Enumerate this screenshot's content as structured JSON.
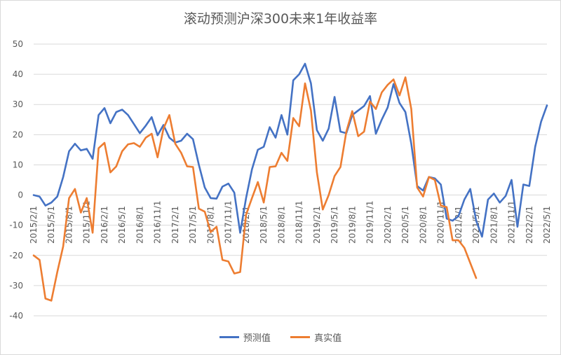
{
  "chart_data": {
    "type": "line",
    "title": "滚动预测沪深300未来1年收益率",
    "ylim": [
      -40,
      50
    ],
    "yticks": [
      50,
      40,
      30,
      20,
      10,
      0,
      -10,
      -20,
      -30,
      -40
    ],
    "xtick_labels": [
      "2015/2/1",
      "2015/5/1",
      "2015/8/1",
      "2015/11/1",
      "2016/2/1",
      "2016/5/1",
      "2016/8/1",
      "2016/11/1",
      "2017/2/1",
      "2017/5/1",
      "2017/8/1",
      "2017/11/1",
      "2018/2/1",
      "2018/5/1",
      "2018/8/1",
      "2018/11/1",
      "2019/2/1",
      "2019/5/1",
      "2019/8/1",
      "2019/11/1",
      "2020/2/1",
      "2020/5/1",
      "2020/8/1",
      "2020/11/1",
      "2021/2/1",
      "2021/5/1",
      "2021/8/1",
      "2021/11/1",
      "2022/2/1",
      "2022/5/1"
    ],
    "grid": true,
    "legend_position": "bottom",
    "series": [
      {
        "name": "预测值",
        "color": "#4472C4",
        "values": [
          0,
          -0.5,
          -3.5,
          -2.5,
          -0.5,
          6,
          14.5,
          17,
          14.8,
          15.3,
          12,
          26.5,
          28.8,
          23.8,
          27.5,
          28.3,
          26.5,
          23.5,
          20.5,
          23,
          25.8,
          19.8,
          23.2,
          19,
          17.4,
          18,
          20.3,
          18.5,
          10,
          2.5,
          -1,
          -1.2,
          2.8,
          3.8,
          0.8,
          -12.5,
          -1,
          8.5,
          15,
          16,
          22.5,
          19,
          26.5,
          20,
          38,
          40,
          43.5,
          37,
          21.5,
          18,
          22,
          32.5,
          21,
          20.5,
          26.5,
          28,
          29.5,
          32.8,
          20.3,
          25,
          29,
          36.8,
          30.5,
          27.5,
          17,
          3,
          1.5,
          6,
          5.5,
          3.5,
          -7.8,
          -8.5,
          -7,
          -1.5,
          2,
          -8.5,
          -13.8,
          -1.5,
          0.5,
          -2.5,
          -0.3,
          5,
          -10.5,
          3.5,
          3,
          16,
          24.3,
          29.7
        ]
      },
      {
        "name": "真实值",
        "color": "#ED7D31",
        "values": [
          -20,
          -21.5,
          -34.3,
          -35,
          -25.5,
          -17,
          -1,
          2,
          -5.8,
          -1,
          -12.5,
          15.5,
          17.3,
          7.5,
          9.5,
          14.5,
          16.8,
          17.2,
          16,
          19,
          20.3,
          12.5,
          22,
          26.5,
          17,
          14,
          9.5,
          9.3,
          -4.5,
          -5.5,
          -12.3,
          -10.5,
          -21.5,
          -22,
          -26,
          -25.5,
          -6.5,
          -1,
          4.3,
          -2.5,
          9.3,
          9.5,
          14,
          11.3,
          25.5,
          22.8,
          37,
          28,
          7.5,
          -4.8,
          0,
          6.3,
          9.3,
          21,
          27.8,
          19.5,
          21,
          31,
          28.5,
          34,
          36.5,
          38.3,
          33,
          39,
          28.5,
          2.5,
          -0.5,
          6,
          5,
          -3.5,
          -4,
          -15,
          -15,
          -17.5,
          -22.5,
          -27.5
        ]
      }
    ]
  }
}
